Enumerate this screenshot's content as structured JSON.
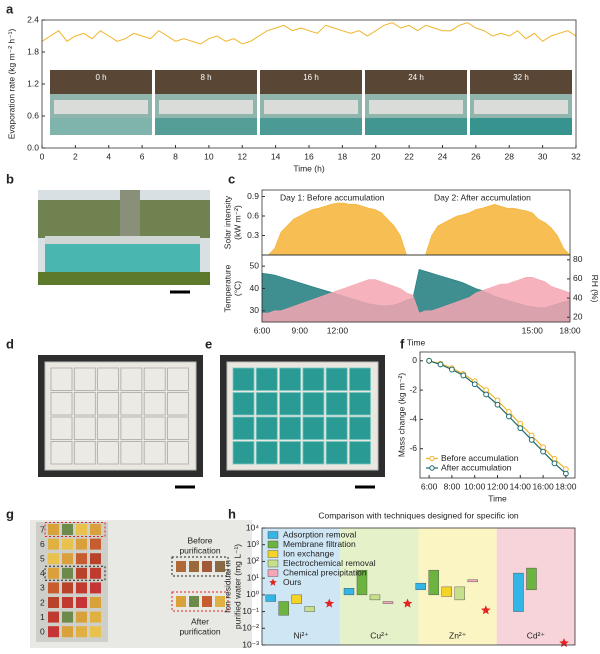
{
  "panel_labels": [
    "a",
    "b",
    "c",
    "d",
    "e",
    "f",
    "g",
    "h"
  ],
  "photos": {
    "a_times": [
      "0 h",
      "8 h",
      "16 h",
      "24 h",
      "32 h"
    ],
    "g_rows": [
      "7",
      "6",
      "5",
      "4",
      "3",
      "2",
      "1",
      "0"
    ],
    "g_before": [
      "Before",
      "purification"
    ],
    "g_after": [
      "After",
      "purification"
    ]
  },
  "chart_data": [
    {
      "type": "line",
      "xlabel": "Time (h)",
      "ylabel": "Evaporation rate (kg m⁻² h⁻¹)",
      "xlim": [
        0,
        32
      ],
      "xticks": [
        0,
        2,
        4,
        6,
        8,
        10,
        12,
        14,
        16,
        18,
        20,
        22,
        24,
        26,
        28,
        30,
        32
      ],
      "ylim": [
        0,
        2.4
      ],
      "yticks": [
        {
          "value": 0,
          "label": "0.0"
        },
        0.6,
        1.2,
        1.8,
        2.4
      ],
      "x": [
        0,
        0.5,
        1,
        1.5,
        2,
        2.5,
        3,
        3.5,
        4,
        4.5,
        5,
        5.5,
        6,
        6.5,
        7,
        7.5,
        8,
        8.5,
        9,
        9.5,
        10,
        10.5,
        11,
        11.5,
        12,
        12.5,
        13,
        13.5,
        14,
        14.5,
        15,
        15.5,
        16,
        16.5,
        17,
        17.5,
        18,
        18.5,
        19,
        19.5,
        20,
        20.5,
        21,
        21.5,
        22,
        22.5,
        23,
        23.5,
        24,
        24.5,
        25,
        25.5,
        26,
        26.5,
        27,
        27.5,
        28,
        28.5,
        29,
        29.5,
        30,
        30.5,
        31,
        31.5,
        32
      ],
      "series": [
        {
          "color": "#f0b429",
          "values": [
            2.0,
            2.1,
            2.2,
            2.0,
            2.1,
            2.15,
            2.05,
            2.2,
            2.1,
            2.0,
            2.05,
            2.15,
            2.1,
            2.05,
            2.2,
            2.1,
            2.0,
            2.05,
            2.0,
            1.95,
            2.05,
            2.1,
            2.0,
            2.05,
            1.95,
            2.0,
            2.1,
            2.2,
            2.25,
            2.3,
            2.2,
            2.25,
            2.2,
            2.15,
            2.3,
            2.25,
            2.2,
            2.15,
            2.2,
            2.1,
            2.2,
            2.3,
            2.35,
            2.25,
            2.3,
            2.2,
            2.3,
            2.25,
            2.2,
            2.2,
            2.3,
            2.35,
            2.25,
            2.2,
            2.1,
            2.15,
            2.1,
            2.2,
            2.05,
            2.15,
            2.0,
            2.1,
            2.15,
            2.2,
            2.1
          ]
        }
      ]
    },
    {
      "type": "area",
      "ylabel": [
        "Solar intensity",
        "(kW m⁻²)"
      ],
      "ylabel_color": "#e8a317",
      "annotations": [
        "Day 1: Before accumulation",
        "Day 2: After accumulation"
      ],
      "categories": [
        "6:00",
        null,
        null,
        null,
        null,
        null,
        "9:00",
        null,
        null,
        null,
        null,
        null,
        "12:00",
        null,
        null,
        null,
        null,
        null,
        null,
        null,
        null,
        null,
        null,
        null,
        null,
        null,
        null,
        null,
        null,
        null,
        null,
        null,
        null,
        null,
        null,
        null,
        null,
        null,
        null,
        null,
        null,
        null,
        null,
        "15:00",
        null,
        null,
        null,
        null,
        null,
        "18:00"
      ],
      "ylim": [
        0,
        1.0
      ],
      "yticks": [
        0.3,
        0.6,
        0.9
      ],
      "series": [
        {
          "color": "#f5b335",
          "values": [
            0,
            0,
            0.1,
            0.35,
            0.45,
            0.55,
            0.6,
            0.65,
            0.7,
            0.72,
            0.75,
            0.78,
            0.8,
            0.8,
            0.78,
            0.78,
            0.75,
            0.72,
            0.7,
            0.65,
            0.55,
            0.45,
            0.3,
            0,
            0,
            0,
            0,
            0.3,
            0.45,
            0.5,
            0.55,
            0.6,
            0.62,
            0.65,
            0.7,
            0.72,
            0.75,
            0.78,
            0.75,
            0.72,
            0.72,
            0.7,
            0.68,
            0.65,
            0.55,
            0.5,
            0.42,
            0.3,
            0.1,
            0
          ]
        }
      ]
    },
    {
      "type": "area",
      "xlabel": "Time",
      "ylabel": [
        "Temperature",
        "(°C)"
      ],
      "ylabel_color": "#e07a8a",
      "y2label": "RH (%)",
      "y2label_color": "#1d7a7c",
      "categories": [
        "6:00",
        null,
        null,
        null,
        null,
        null,
        "9:00",
        null,
        null,
        null,
        null,
        null,
        "12:00",
        null,
        null,
        null,
        null,
        null,
        null,
        null,
        null,
        null,
        null,
        null,
        null,
        null,
        null,
        null,
        null,
        null,
        null,
        null,
        null,
        null,
        null,
        null,
        null,
        null,
        null,
        null,
        null,
        null,
        null,
        "15:00",
        null,
        null,
        null,
        null,
        null,
        "18:00"
      ],
      "ylim": [
        25,
        55
      ],
      "yticks": [
        30,
        40,
        50
      ],
      "y2lim": [
        15,
        85
      ],
      "y2ticks": [
        20,
        40,
        60,
        80
      ],
      "series": [
        {
          "color": "#1d7a7c",
          "axis": "y2",
          "values": [
            66,
            65,
            64,
            62,
            60,
            58,
            56,
            54,
            52,
            50,
            48,
            46,
            44,
            42,
            40,
            38,
            36,
            34,
            33,
            32,
            32,
            33,
            35,
            38,
            40,
            70,
            68,
            66,
            64,
            62,
            60,
            58,
            56,
            53,
            50,
            48,
            45,
            42,
            40,
            38,
            36,
            34,
            32,
            31,
            30,
            30,
            32,
            34,
            36,
            38
          ]
        },
        {
          "color": "#f4a6b3",
          "values": [
            29,
            29,
            30,
            30,
            31,
            32,
            33,
            34,
            35,
            36,
            37,
            38,
            39,
            40,
            41,
            42,
            43,
            44,
            44,
            43,
            42,
            41,
            40,
            38,
            37,
            29,
            30,
            30,
            31,
            32,
            33,
            34,
            35,
            36,
            38,
            39,
            40,
            41,
            42,
            42,
            43,
            44,
            45,
            45,
            44,
            43,
            41,
            40,
            39,
            38
          ]
        }
      ]
    },
    {
      "type": "line",
      "markers": true,
      "legend": "lower left",
      "xlabel": "Time",
      "ylabel": "Mass change (kg m⁻²)",
      "xlim": [
        5.2,
        18.8
      ],
      "xticks": [
        {
          "value": 6,
          "label": "6:00"
        },
        {
          "value": 8,
          "label": "8:00"
        },
        {
          "value": 10,
          "label": "10:00"
        },
        {
          "value": 12,
          "label": "12:00"
        },
        {
          "value": 14,
          "label": "14:00"
        },
        {
          "value": 16,
          "label": "16:00"
        },
        {
          "value": 18,
          "label": "18:00"
        }
      ],
      "ylim": [
        -8,
        0.6
      ],
      "yticks": [
        0,
        -2,
        -4,
        -6
      ],
      "x": [
        6,
        7,
        8,
        9,
        10,
        11,
        12,
        13,
        14,
        15,
        16,
        17,
        18
      ],
      "series": [
        {
          "name": "Before accumulation",
          "color": "#f0b429",
          "values": [
            0,
            -0.2,
            -0.5,
            -0.9,
            -1.4,
            -2.0,
            -2.7,
            -3.5,
            -4.3,
            -5.1,
            -5.9,
            -6.7,
            -7.4
          ]
        },
        {
          "name": "After accumulation",
          "color": "#1d6b70",
          "values": [
            0,
            -0.25,
            -0.6,
            -1.0,
            -1.6,
            -2.3,
            -3.0,
            -3.8,
            -4.6,
            -5.4,
            -6.2,
            -7.0,
            -7.7
          ]
        }
      ]
    },
    {
      "type": "range",
      "log": true,
      "legend": "upper left",
      "title": "Comparison with techniques designed for specific ion",
      "ylabel": [
        "Ion residual in",
        "purified water (mg L⁻¹)"
      ],
      "categories": [
        "Ni²⁺",
        "Cu²⁺",
        "Zn²⁺",
        "Cd²⁺"
      ],
      "category_colors": [
        "#cfe6f5",
        "#e4f1c9",
        "#fbf5c4",
        "#f7d3da"
      ],
      "ylim": [
        0.001,
        10000
      ],
      "yticks": [
        {
          "value": 0.001,
          "label": "10⁻³"
        },
        {
          "value": 0.01,
          "label": "10⁻²"
        },
        {
          "value": 0.1,
          "label": "10⁻¹"
        },
        {
          "value": 1,
          "label": "10⁰"
        },
        {
          "value": 10,
          "label": "10¹"
        },
        {
          "value": 100,
          "label": "10²"
        },
        {
          "value": 1000,
          "label": "10³"
        },
        {
          "value": 10000,
          "label": "10⁴"
        }
      ],
      "series": [
        {
          "name": "Adsorption removal",
          "color": "#33b5e5",
          "low": [
            0.4,
            1,
            2,
            0.1
          ],
          "high": [
            1,
            2.5,
            5,
            20
          ]
        },
        {
          "name": "Membrane filtration",
          "color": "#6cb33f",
          "low": [
            0.06,
            1,
            1,
            2
          ],
          "high": [
            0.4,
            30,
            30,
            40
          ]
        },
        {
          "name": "Ion exchange",
          "color": "#f5d327",
          "low": [
            0.3,
            null,
            0.8,
            null
          ],
          "high": [
            1,
            null,
            3,
            null
          ]
        },
        {
          "name": "Electrochemical removal",
          "color": "#c6df8b",
          "low": [
            0.1,
            0.5,
            0.5,
            null
          ],
          "high": [
            0.2,
            1,
            3,
            null
          ]
        },
        {
          "name": "Chemical precipitation",
          "color": "#f4a6b6",
          "low": [
            null,
            0.3,
            6,
            null
          ],
          "high": [
            null,
            0.4,
            8,
            null
          ]
        },
        {
          "name": "Ours",
          "color": "#e52421",
          "marker": "star",
          "values": [
            0.3,
            0.3,
            0.12,
            0.0013
          ]
        }
      ]
    }
  ]
}
